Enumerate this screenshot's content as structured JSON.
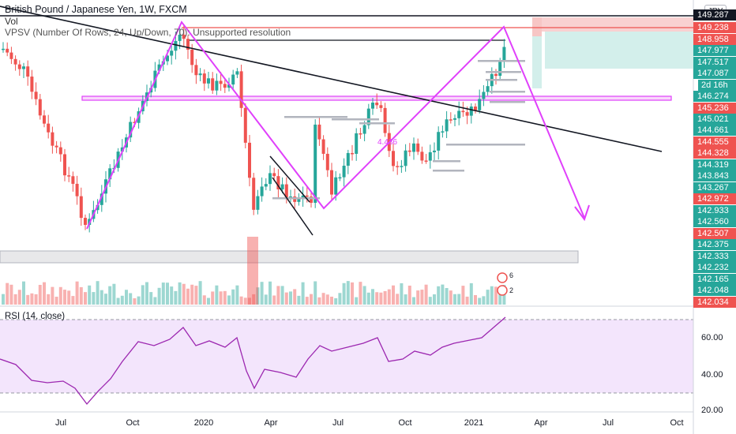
{
  "header": {
    "title": "British Pound / Japanese Yen, 1W, FXCM",
    "vol_label": "Vol",
    "vpsv_label": "VPSV (Number Of Rows, 24, Up/Down, 70): Unsupported resolution",
    "currency": "JPY",
    "rsi_label": "RSI (14, close)"
  },
  "price_axis": {
    "labels": [
      {
        "text": "149.287",
        "style": "dark"
      },
      {
        "text": "149.238",
        "style": "red"
      },
      {
        "text": "148.958",
        "style": "red"
      },
      {
        "text": "147.977",
        "style": "teal"
      },
      {
        "text": "147.517",
        "style": "teal"
      },
      {
        "text": "147.087",
        "style": "teal"
      },
      {
        "text": "146.274",
        "style": "teal"
      },
      {
        "text": "145.236",
        "style": "red"
      },
      {
        "text": "145.021",
        "style": "teal"
      },
      {
        "text": "144.661",
        "style": "teal"
      },
      {
        "text": "144.555",
        "style": "red"
      },
      {
        "text": "144.328",
        "style": "red"
      },
      {
        "text": "144.319",
        "style": "teal"
      },
      {
        "text": "143.843",
        "style": "teal"
      },
      {
        "text": "143.267",
        "style": "teal"
      },
      {
        "text": "142.972",
        "style": "red"
      },
      {
        "text": "142.933",
        "style": "teal"
      },
      {
        "text": "142.560",
        "style": "teal"
      },
      {
        "text": "142.507",
        "style": "red"
      },
      {
        "text": "142.375",
        "style": "teal"
      },
      {
        "text": "142.333",
        "style": "teal"
      },
      {
        "text": "142.232",
        "style": "teal"
      },
      {
        "text": "142.165",
        "style": "teal"
      },
      {
        "text": "142.048",
        "style": "teal"
      },
      {
        "text": "142.034",
        "style": "red"
      }
    ],
    "countdown": "2d 16h"
  },
  "time_axis": [
    "Jul",
    "Oct",
    "2020",
    "Apr",
    "Jul",
    "Oct",
    "2021",
    "Apr",
    "Jul",
    "Oct"
  ],
  "rsi_axis": [
    "60.00",
    "40.00",
    "20.00"
  ],
  "annotations": {
    "vol_badge_1": "6",
    "vol_badge_2": "2",
    "pattern_text": "4.436"
  },
  "colors": {
    "up": "#26a69a",
    "down": "#ef5350",
    "pattern": "#e040fb",
    "trendline": "#131722",
    "rsi_fill": "#f3e5fc",
    "rsi_line": "#9c27b0"
  }
}
